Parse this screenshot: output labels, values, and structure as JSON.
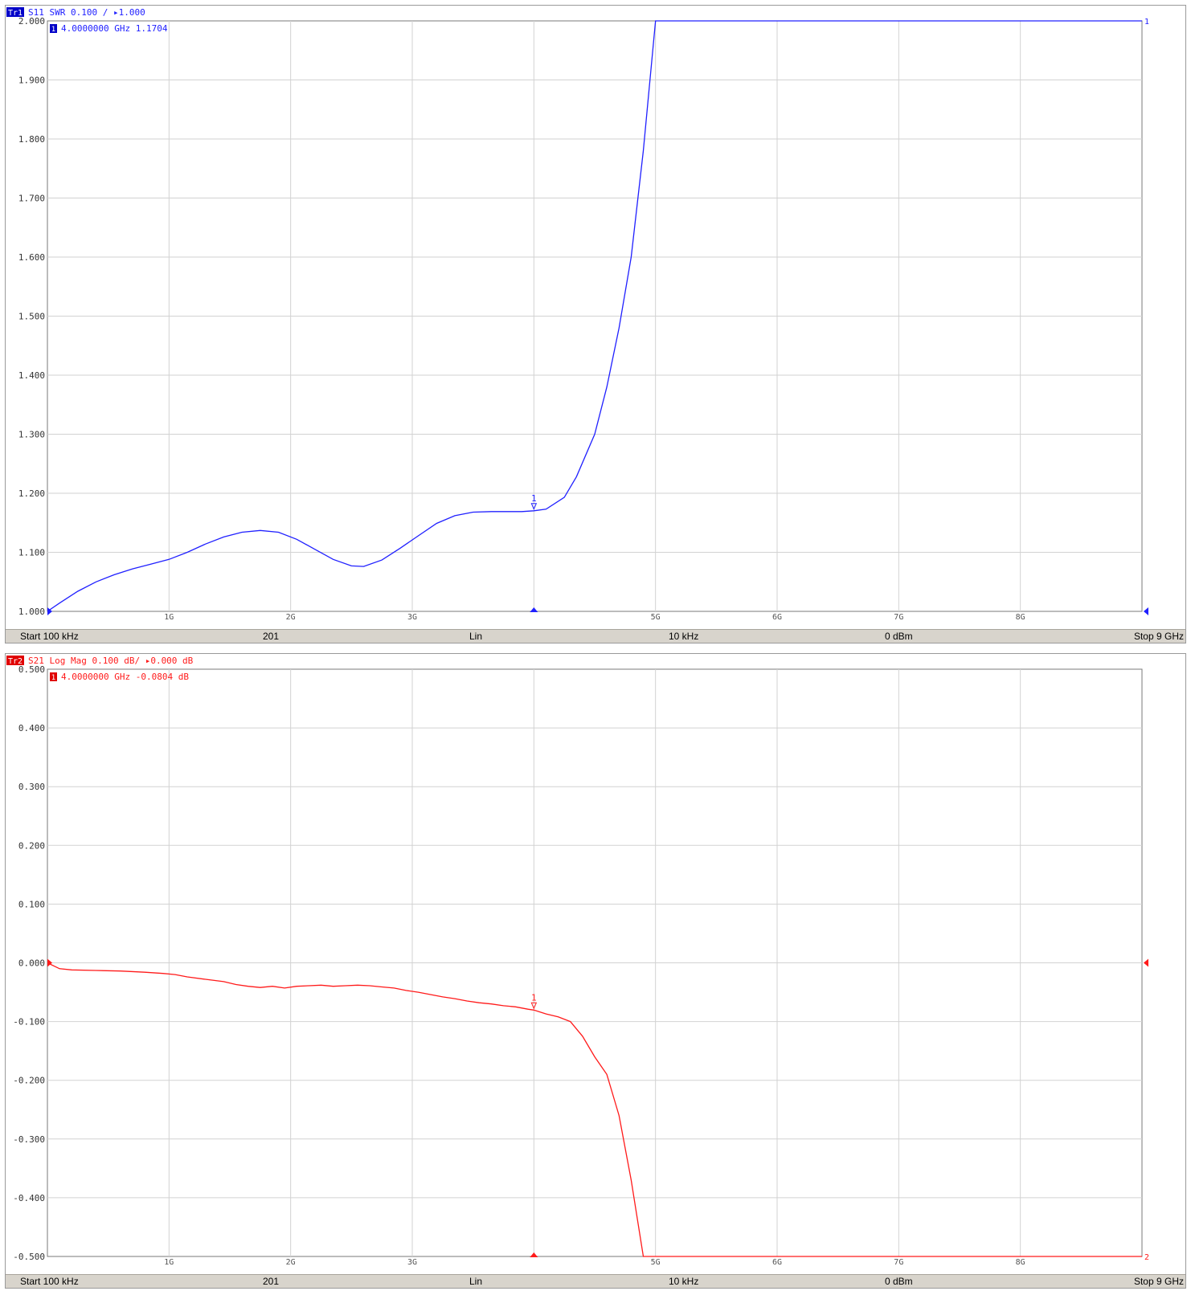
{
  "chart_data": [
    {
      "type": "line",
      "trace_badge": "Tr1",
      "header": "S11  SWR 0.100 / ▸1.000",
      "marker_readout_index": "1",
      "marker_readout": "4.0000000 GHz  1.1704",
      "marker_label": "1",
      "end_label": "1",
      "color": "#2020ff",
      "badge_color": "#0000c8",
      "ylim": [
        1.0,
        2.0
      ],
      "yticks": [
        "2.000",
        "1.900",
        "1.800",
        "1.700",
        "1.600",
        "1.500",
        "1.400",
        "1.300",
        "1.200",
        "1.100",
        "1.000"
      ],
      "xlim": [
        0.0001,
        9.0
      ],
      "xticks": [
        {
          "x": 1,
          "label": "1G"
        },
        {
          "x": 2,
          "label": "2G"
        },
        {
          "x": 3,
          "label": "3G"
        },
        {
          "x": 4,
          "label": ""
        },
        {
          "x": 5,
          "label": "5G"
        },
        {
          "x": 6,
          "label": "6G"
        },
        {
          "x": 7,
          "label": "7G"
        },
        {
          "x": 8,
          "label": "8G"
        }
      ],
      "marker_x": 4.0,
      "marker_y": 1.1704,
      "series": [
        {
          "x": [
            0.0001,
            0.1,
            0.25,
            0.4,
            0.55,
            0.7,
            0.85,
            1.0,
            1.15,
            1.3,
            1.45,
            1.6,
            1.75,
            1.9,
            2.05,
            2.2,
            2.35,
            2.5,
            2.6,
            2.75,
            2.9,
            3.05,
            3.2,
            3.35,
            3.5,
            3.65,
            3.8,
            3.9,
            4.0,
            4.1,
            4.25,
            4.35,
            4.5,
            4.6,
            4.7,
            4.8,
            4.9,
            5.0,
            9.0
          ],
          "y": [
            1.0,
            1.014,
            1.034,
            1.05,
            1.062,
            1.072,
            1.08,
            1.088,
            1.1,
            1.114,
            1.126,
            1.134,
            1.137,
            1.134,
            1.122,
            1.105,
            1.088,
            1.077,
            1.076,
            1.087,
            1.107,
            1.128,
            1.149,
            1.162,
            1.168,
            1.169,
            1.169,
            1.169,
            1.1704,
            1.173,
            1.193,
            1.228,
            1.3,
            1.38,
            1.48,
            1.6,
            1.78,
            2.0,
            2.0
          ]
        }
      ]
    },
    {
      "type": "line",
      "trace_badge": "Tr2",
      "header": "S21  Log Mag 0.100 dB/ ▸0.000 dB",
      "marker_readout_index": "1",
      "marker_readout": "4.0000000 GHz -0.0804 dB",
      "marker_label": "1",
      "end_label": "2",
      "color": "#ff1a1a",
      "badge_color": "#e00000",
      "ylim": [
        -0.5,
        0.5
      ],
      "yticks": [
        "0.500",
        "0.400",
        "0.300",
        "0.200",
        "0.100",
        "0.000",
        "-0.100",
        "-0.200",
        "-0.300",
        "-0.400",
        "-0.500"
      ],
      "xlim": [
        0.0001,
        9.0
      ],
      "xticks": [
        {
          "x": 1,
          "label": "1G"
        },
        {
          "x": 2,
          "label": "2G"
        },
        {
          "x": 3,
          "label": "3G"
        },
        {
          "x": 4,
          "label": ""
        },
        {
          "x": 5,
          "label": "5G"
        },
        {
          "x": 6,
          "label": "6G"
        },
        {
          "x": 7,
          "label": "7G"
        },
        {
          "x": 8,
          "label": "8G"
        }
      ],
      "marker_x": 4.0,
      "marker_y": -0.0804,
      "series": [
        {
          "x": [
            0.0001,
            0.1,
            0.2,
            0.4,
            0.6,
            0.8,
            0.95,
            1.05,
            1.15,
            1.3,
            1.45,
            1.55,
            1.65,
            1.75,
            1.85,
            1.95,
            2.05,
            2.15,
            2.25,
            2.35,
            2.45,
            2.55,
            2.65,
            2.75,
            2.85,
            2.95,
            3.05,
            3.15,
            3.25,
            3.35,
            3.45,
            3.55,
            3.65,
            3.75,
            3.85,
            3.95,
            4.0,
            4.1,
            4.2,
            4.3,
            4.4,
            4.5,
            4.6,
            4.7,
            4.8,
            4.9,
            5.0,
            9.0
          ],
          "y": [
            0.0,
            -0.01,
            -0.012,
            -0.013,
            -0.014,
            -0.016,
            -0.018,
            -0.02,
            -0.024,
            -0.028,
            -0.032,
            -0.037,
            -0.04,
            -0.042,
            -0.04,
            -0.043,
            -0.04,
            -0.039,
            -0.038,
            -0.04,
            -0.039,
            -0.038,
            -0.039,
            -0.041,
            -0.043,
            -0.047,
            -0.05,
            -0.054,
            -0.058,
            -0.061,
            -0.065,
            -0.068,
            -0.07,
            -0.073,
            -0.075,
            -0.079,
            -0.0804,
            -0.087,
            -0.092,
            -0.1,
            -0.125,
            -0.16,
            -0.19,
            -0.26,
            -0.37,
            -0.5,
            -0.5,
            -0.5
          ]
        }
      ]
    }
  ],
  "status_bar": {
    "start": "Start 100 kHz",
    "points": "201",
    "sweep_type": "Lin",
    "ifbw": "10 kHz",
    "power": "0 dBm",
    "stop": "Stop 9 GHz"
  }
}
